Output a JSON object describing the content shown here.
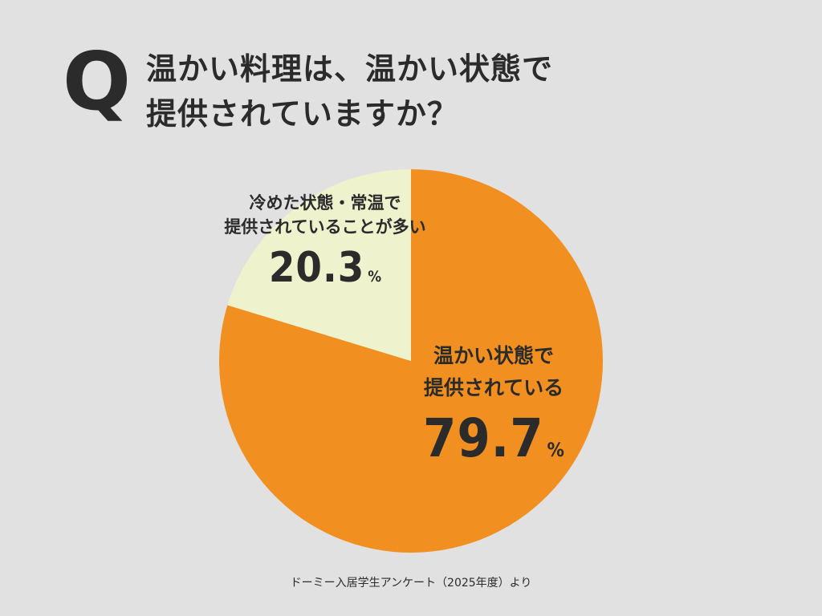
{
  "question": {
    "mark": "Q",
    "line1": "温かい料理は、温かい状態で",
    "line2": "提供されていますか？"
  },
  "chart_data": {
    "type": "pie",
    "slices": [
      {
        "label_line1": "温かい状態で",
        "label_line2": "提供されている",
        "value": 79.7,
        "value_text": "79.7",
        "unit": "%",
        "color": "#f19020"
      },
      {
        "label_line1": "冷めた状態・常温で",
        "label_line2": "提供されていることが多い",
        "value": 20.3,
        "value_text": "20.3",
        "unit": "%",
        "color": "#eef2cd"
      }
    ]
  },
  "source": "ドーミー入居学生アンケート（2025年度）より"
}
